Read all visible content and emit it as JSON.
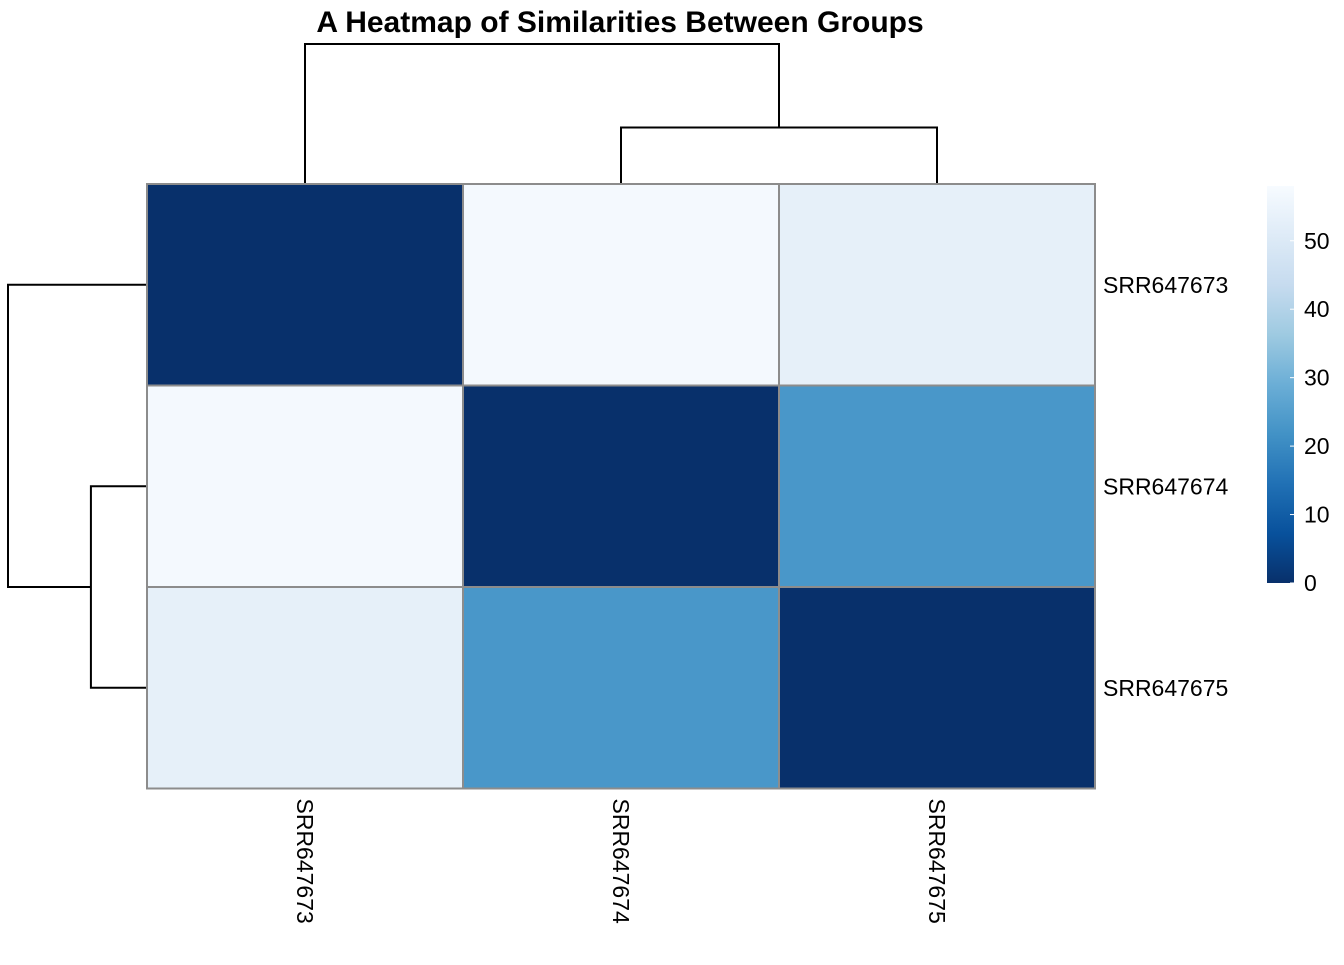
{
  "chart_data": {
    "type": "heatmap",
    "title": "A Heatmap of Similarities Between Groups",
    "rows": [
      "SRR647673",
      "SRR647674",
      "SRR647675"
    ],
    "columns": [
      "SRR647673",
      "SRR647674",
      "SRR647675"
    ],
    "values": [
      [
        0,
        57,
        53
      ],
      [
        57,
        0,
        23
      ],
      [
        53,
        23,
        0
      ]
    ],
    "color_scale": {
      "palette": [
        "#08306b",
        "#08519c",
        "#2171b5",
        "#4292c6",
        "#6baed6",
        "#9ecae1",
        "#c6dbef",
        "#deebf7",
        "#f7fbff"
      ],
      "min": 0,
      "max": 58
    },
    "legend": {
      "ticks": [
        0,
        10,
        20,
        30,
        40,
        50
      ],
      "tick_labels": [
        "0",
        "10",
        "20",
        "30",
        "40",
        "50"
      ],
      "position": "right"
    },
    "column_dendrogram": {
      "merges": [
        {
          "left": "SRR647674",
          "right": "SRR647675",
          "height": 23
        },
        {
          "left": "SRR647673",
          "right": "cluster-1",
          "height": 57
        }
      ]
    },
    "row_dendrogram": {
      "merges": [
        {
          "left": "SRR647674",
          "right": "SRR647675",
          "height": 23
        },
        {
          "left": "SRR647673",
          "right": "cluster-1",
          "height": 57
        }
      ]
    },
    "cell_border_color": "#8c8c8c"
  }
}
